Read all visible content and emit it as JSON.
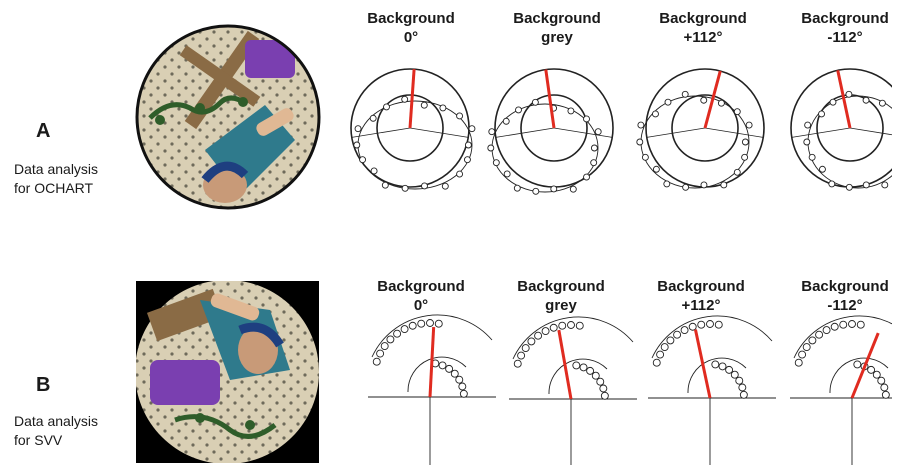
{
  "rows": [
    {
      "letter": "A",
      "caption": [
        "Data analysis",
        "for OCHART"
      ],
      "panels": [
        {
          "line1": "Background",
          "line2": "0°"
        },
        {
          "line1": "Background",
          "line2": "grey"
        },
        {
          "line1": "Background",
          "line2": "+112°"
        },
        {
          "line1": "Background",
          "line2": "-112°"
        }
      ]
    },
    {
      "letter": "B",
      "caption": [
        "Data analysis",
        "for SVV"
      ],
      "panels": [
        {
          "line1": "Background",
          "line2": "0°"
        },
        {
          "line1": "Background",
          "line2": "grey"
        },
        {
          "line1": "Background",
          "line2": "+112°"
        },
        {
          "line1": "Background",
          "line2": "-112°"
        }
      ]
    }
  ],
  "colors": {
    "subjective_line": "#e02b20",
    "ink": "#222222"
  }
}
